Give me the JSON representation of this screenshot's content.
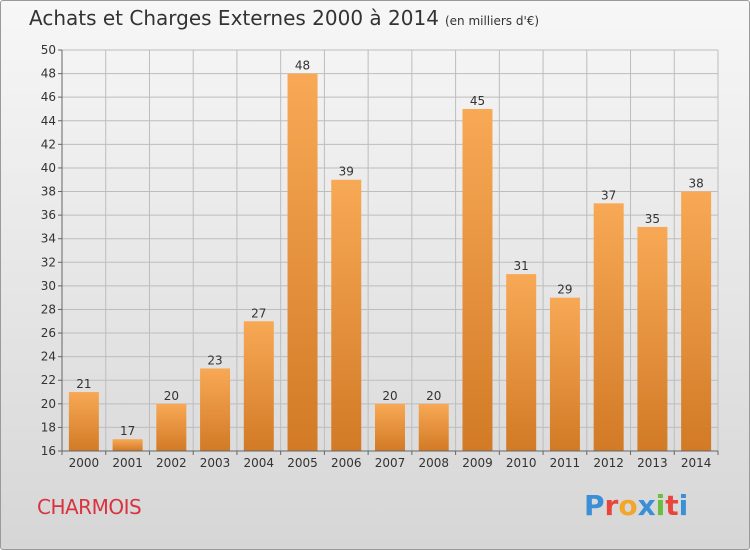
{
  "header": {
    "title": "Achats et Charges Externes 2000 à 2014",
    "subtitle": "(en milliers d'€)"
  },
  "footer": {
    "commune": "CHARMOIS",
    "logo_text": "Proxiti",
    "logo_colors": [
      "#3a8fd6",
      "#e8463c",
      "#f2a62a",
      "#3a8fd6",
      "#6bbd3c",
      "#e8463c",
      "#3a8fd6"
    ]
  },
  "colors": {
    "bar_light": "#f8a955",
    "bar_dark": "#d27a26",
    "grid": "#bdbdbd",
    "axis": "#666666"
  },
  "chart_data": {
    "type": "bar",
    "title": "Achats et Charges Externes 2000 à 2014",
    "subtitle": "(en milliers d'€)",
    "categories": [
      "2000",
      "2001",
      "2002",
      "2003",
      "2004",
      "2005",
      "2006",
      "2007",
      "2008",
      "2009",
      "2010",
      "2011",
      "2012",
      "2013",
      "2014"
    ],
    "values": [
      21,
      17,
      20,
      23,
      27,
      48,
      39,
      20,
      20,
      45,
      31,
      29,
      37,
      35,
      38
    ],
    "ylim": [
      16,
      50
    ],
    "yticks": [
      16,
      18,
      20,
      22,
      24,
      26,
      28,
      30,
      32,
      34,
      36,
      38,
      40,
      42,
      44,
      46,
      48,
      50
    ],
    "grid": true,
    "xlabel": "",
    "ylabel": ""
  }
}
